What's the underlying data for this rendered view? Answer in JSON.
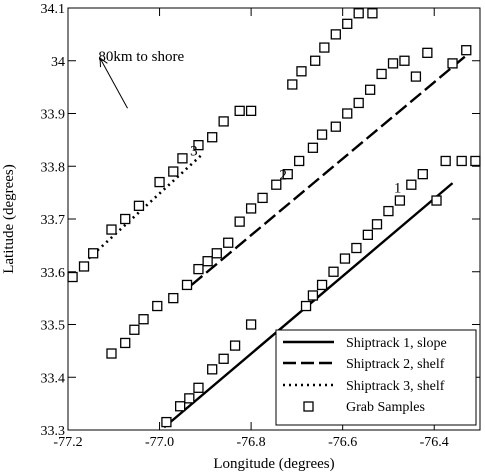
{
  "chart_data": {
    "type": "scatter",
    "xlabel": "Longitude (degrees)",
    "ylabel": "Latitude (degrees)",
    "xlim": [
      -77.2,
      -76.3
    ],
    "ylim": [
      33.3,
      34.1
    ],
    "x_ticks": [
      -77.2,
      -77.0,
      -76.8,
      -76.6,
      -76.4
    ],
    "x_tick_labels": [
      "-77.2",
      "-77.0",
      "-76.8",
      "-76.6",
      "-76.4"
    ],
    "y_ticks": [
      33.3,
      33.4,
      33.5,
      33.6,
      33.7,
      33.8,
      33.9,
      34.0,
      34.1
    ],
    "y_tick_labels": [
      "33.3",
      "33.4",
      "33.5",
      "33.6",
      "33.7",
      "33.8",
      "33.9",
      "34",
      "34.1"
    ],
    "grid": false,
    "legend_position": "bottom-right",
    "series": [
      {
        "name": "Shiptrack 1, slope",
        "kind": "line",
        "style": "solid",
        "x": [
          -76.99,
          -76.36
        ],
        "y": [
          33.305,
          33.768
        ]
      },
      {
        "name": "Shiptrack 2, shelf",
        "kind": "line",
        "style": "dashed",
        "x": [
          -76.93,
          -76.33
        ],
        "y": [
          33.575,
          34.01
        ]
      },
      {
        "name": "Shiptrack 3, shelf",
        "kind": "line",
        "style": "dotted",
        "x": [
          -77.155,
          -76.91
        ],
        "y": [
          33.625,
          33.82
        ]
      },
      {
        "name": "Grab Samples",
        "kind": "markers",
        "marker": "open-square",
        "x": [
          -76.985,
          -76.955,
          -76.935,
          -76.915,
          -76.885,
          -76.86,
          -76.835,
          -76.8,
          -76.68,
          -76.665,
          -76.645,
          -76.62,
          -76.595,
          -76.57,
          -76.545,
          -76.525,
          -76.5,
          -76.475,
          -76.45,
          -76.425,
          -76.395,
          -76.375,
          -76.34,
          -76.31,
          -77.105,
          -77.075,
          -77.055,
          -77.035,
          -77.005,
          -76.97,
          -76.94,
          -76.915,
          -76.895,
          -76.875,
          -76.85,
          -76.825,
          -76.8,
          -76.775,
          -76.745,
          -76.72,
          -76.695,
          -76.665,
          -76.645,
          -76.615,
          -76.59,
          -76.565,
          -76.54,
          -76.515,
          -76.49,
          -76.465,
          -76.44,
          -76.415,
          -76.36,
          -76.33,
          -77.19,
          -77.165,
          -77.145,
          -77.105,
          -77.075,
          -77.045,
          -77.0,
          -76.97,
          -76.95,
          -76.915,
          -76.885,
          -76.86,
          -76.825,
          -76.8,
          -76.71,
          -76.69,
          -76.66,
          -76.64,
          -76.615,
          -76.59,
          -76.565,
          -76.535
        ],
        "y": [
          33.315,
          33.345,
          33.36,
          33.38,
          33.415,
          33.435,
          33.46,
          33.5,
          33.535,
          33.555,
          33.575,
          33.6,
          33.625,
          33.645,
          33.67,
          33.69,
          33.715,
          33.735,
          33.765,
          33.785,
          33.735,
          33.81,
          33.81,
          33.81,
          33.445,
          33.465,
          33.49,
          33.51,
          33.535,
          33.55,
          33.575,
          33.605,
          33.62,
          33.635,
          33.655,
          33.695,
          33.72,
          33.74,
          33.765,
          33.785,
          33.81,
          33.835,
          33.86,
          33.875,
          33.9,
          33.92,
          33.945,
          33.975,
          33.995,
          34.0,
          33.97,
          34.015,
          33.995,
          34.02,
          33.59,
          33.61,
          33.635,
          33.68,
          33.7,
          33.725,
          33.77,
          33.79,
          33.815,
          33.84,
          33.855,
          33.885,
          33.905,
          33.905,
          33.955,
          33.98,
          34.0,
          34.025,
          34.05,
          34.07,
          34.09,
          34.09
        ]
      }
    ],
    "annotations": [
      {
        "text": "1",
        "x": -76.48,
        "y": 33.75
      },
      {
        "text": "2",
        "x": -76.73,
        "y": 33.775
      },
      {
        "text": "3",
        "x": -76.925,
        "y": 33.82
      },
      {
        "text": "80km to shore",
        "x": -77.04,
        "y": 34.0,
        "arrow": true,
        "arrow_from": [
          -77.07,
          33.91
        ],
        "arrow_to": [
          -77.13,
          34.005
        ]
      }
    ]
  }
}
